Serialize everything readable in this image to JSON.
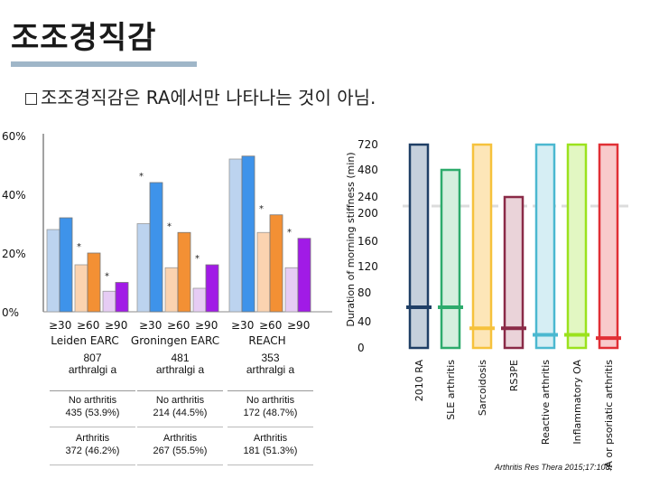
{
  "title": "조조경직감",
  "bullet": "조조경직감은 RA에서만 나타나는 것이 아님.",
  "citation": "Arthritis Res Thera 2015;17:108;",
  "colors": {
    "blue_light": "#bcd3ef",
    "blue": "#3e93ea",
    "orange_light": "#fbd3b0",
    "orange": "#f39034",
    "purple_light": "#e6ccf4",
    "purple": "#a11be6"
  },
  "chart_data": [
    {
      "type": "bar",
      "y_ticks": [
        "0%",
        "20%",
        "40%",
        "60%"
      ],
      "ylim": [
        0,
        60
      ],
      "groups": [
        {
          "name": "Leiden EARC",
          "categories": [
            "≥30",
            "≥60",
            "≥90"
          ],
          "series": [
            {
              "name": "No arthritis",
              "values": [
                28,
                16,
                7
              ]
            },
            {
              "name": "Arthritis",
              "values": [
                32,
                20,
                10
              ]
            }
          ]
        },
        {
          "name": "Groningen EARC",
          "categories": [
            "≥30",
            "≥60",
            "≥90"
          ],
          "series": [
            {
              "name": "No arthritis",
              "values": [
                30,
                15,
                8
              ]
            },
            {
              "name": "Arthritis",
              "values": [
                44,
                27,
                16
              ]
            }
          ]
        },
        {
          "name": "REACH",
          "categories": [
            "≥30",
            "≥60",
            "≥90"
          ],
          "series": [
            {
              "name": "No arthritis",
              "values": [
                52,
                27,
                15
              ]
            },
            {
              "name": "Arthritis",
              "values": [
                53,
                33,
                25
              ]
            }
          ]
        }
      ],
      "significance_marker": "*",
      "table": [
        {
          "header_n": "807",
          "header_t": "arthralgi a",
          "no_arthritis": [
            "No arthritis",
            "435 (53.9%)"
          ],
          "arthritis": [
            "Arthritis",
            "372 (46.2%)"
          ]
        },
        {
          "header_n": "481",
          "header_t": "arthralgi a",
          "no_arthritis": [
            "No arthritis",
            "214 (44.5%)"
          ],
          "arthritis": [
            "Arthritis",
            "267 (55.5%)"
          ]
        },
        {
          "header_n": "353",
          "header_t": "arthralgi a",
          "no_arthritis": [
            "No arthritis",
            "172 (48.7%)"
          ],
          "arthritis": [
            "Arthritis",
            "181 (51.3%)"
          ]
        }
      ]
    },
    {
      "type": "bar",
      "ylabel": "Duration of morning stiffness (min)",
      "y_ticks": [
        "0",
        "40",
        "80",
        "120",
        "160",
        "200",
        "240",
        "480",
        "720"
      ],
      "broken_axis": true,
      "categories": [
        "2010 RA",
        "SLE arthritis",
        "Sarcoidosis",
        "RS3PE",
        "Reactive arthritis",
        "Inflammatory OA",
        "SpA or psoriatic arthritis"
      ],
      "medians": [
        60,
        60,
        30,
        30,
        20,
        20,
        15
      ],
      "max": [
        720,
        480,
        720,
        240,
        720,
        720,
        720
      ],
      "colors": [
        "#1f3f66",
        "#2dab6c",
        "#f6c23c",
        "#8a2a47",
        "#4bb8d0",
        "#9be21d",
        "#e12f35"
      ],
      "fill_colors": [
        "#c5d0dc",
        "#d4efde",
        "#fde6b8",
        "#ead3d9",
        "#d6eef4",
        "#e2f7c2",
        "#f8cacb"
      ]
    }
  ]
}
